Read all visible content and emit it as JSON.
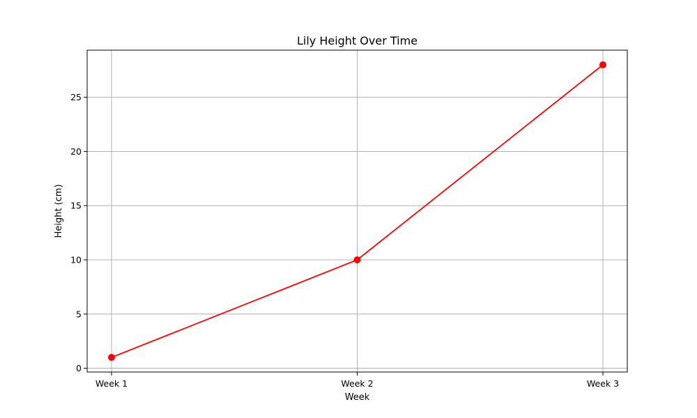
{
  "chart_data": {
    "type": "line",
    "title": "Lily Height Over Time",
    "xlabel": "Week",
    "ylabel": "Height (cm)",
    "categories": [
      "Week 1",
      "Week 2",
      "Week 3"
    ],
    "series": [
      {
        "values": [
          1,
          10,
          28
        ],
        "color": "#ff0000",
        "marker": "circle"
      }
    ],
    "ylim": [
      -0.35,
      29.35
    ],
    "yticks": [
      0,
      5,
      10,
      15,
      20,
      25
    ],
    "grid": true,
    "legend": "none"
  }
}
